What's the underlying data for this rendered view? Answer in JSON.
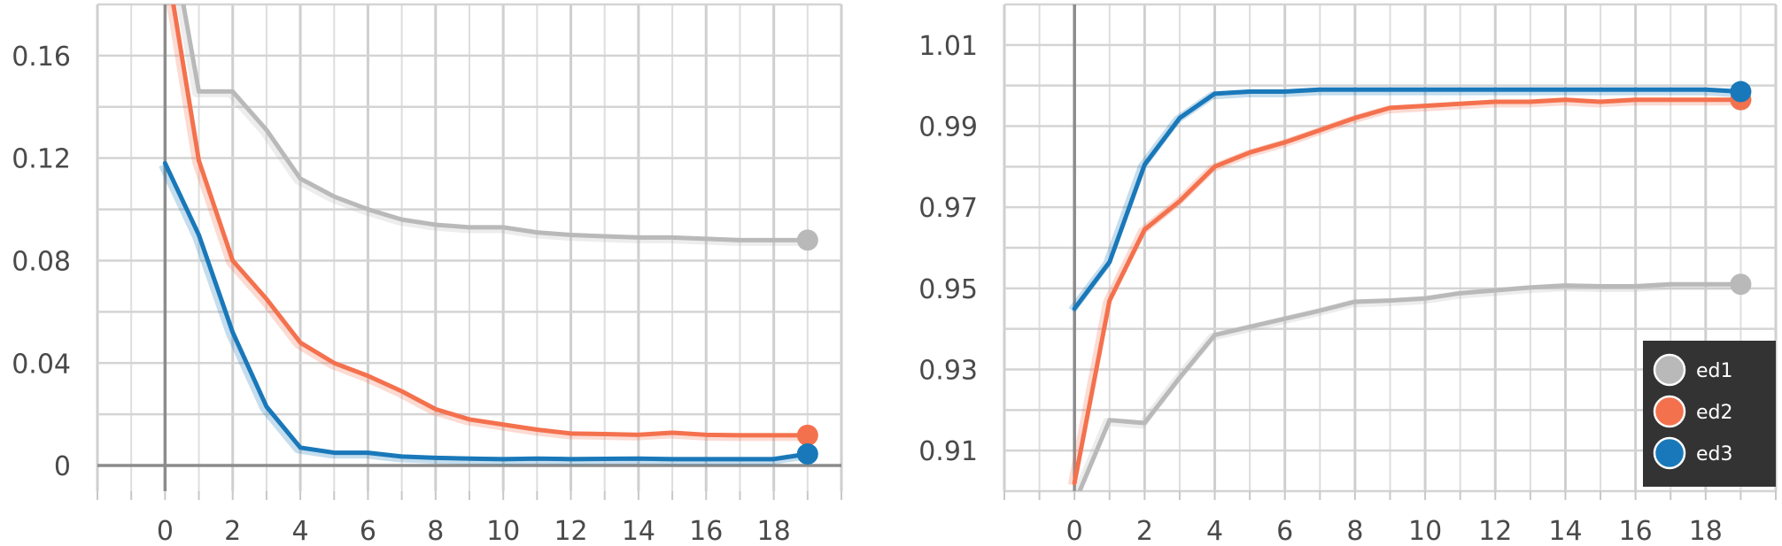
{
  "chart_data": [
    {
      "type": "line",
      "title": "",
      "xlabel": "",
      "ylabel": "",
      "xlim": [
        -2,
        20
      ],
      "ylim": [
        -0.01,
        0.18
      ],
      "x_ticks": [
        "0",
        "2",
        "4",
        "6",
        "8",
        "10",
        "12",
        "14",
        "16",
        "18"
      ],
      "y_ticks": [
        "0",
        "0.04",
        "0.08",
        "0.12",
        "0.16"
      ],
      "grid": true,
      "x": [
        0,
        1,
        2,
        3,
        4,
        5,
        6,
        7,
        8,
        9,
        10,
        11,
        12,
        13,
        14,
        15,
        16,
        17,
        18,
        19
      ],
      "series": [
        {
          "name": "ed1",
          "color": "#b9b9b9",
          "values": [
            0.22,
            0.146,
            0.146,
            0.131,
            0.112,
            0.105,
            0.1,
            0.096,
            0.094,
            0.093,
            0.093,
            0.091,
            0.09,
            0.0895,
            0.089,
            0.089,
            0.0885,
            0.088,
            0.088,
            0.088
          ]
        },
        {
          "name": "ed2",
          "color": "#f4714e",
          "values": [
            0.2,
            0.119,
            0.08,
            0.065,
            0.048,
            0.04,
            0.035,
            0.029,
            0.022,
            0.018,
            0.016,
            0.014,
            0.0125,
            0.0123,
            0.012,
            0.0128,
            0.012,
            0.0118,
            0.0118,
            0.0118
          ]
        },
        {
          "name": "ed3",
          "color": "#1978b9",
          "values": [
            0.118,
            0.09,
            0.052,
            0.023,
            0.007,
            0.005,
            0.005,
            0.0035,
            0.003,
            0.0027,
            0.0025,
            0.0027,
            0.0025,
            0.0026,
            0.0027,
            0.0025,
            0.0025,
            0.0025,
            0.0025,
            0.0045
          ]
        }
      ]
    },
    {
      "type": "line",
      "title": "",
      "xlabel": "",
      "ylabel": "",
      "xlim": [
        -2,
        20
      ],
      "ylim": [
        0.9,
        1.02
      ],
      "x_ticks": [
        "0",
        "2",
        "4",
        "6",
        "8",
        "10",
        "12",
        "14",
        "16",
        "18"
      ],
      "y_ticks": [
        "0.91",
        "0.93",
        "0.95",
        "0.97",
        "0.99",
        "1.01"
      ],
      "grid": true,
      "legend": {
        "placement": "bottom-right",
        "background": "#333333"
      },
      "x": [
        0,
        1,
        2,
        3,
        4,
        5,
        6,
        7,
        8,
        9,
        10,
        11,
        12,
        13,
        14,
        15,
        16,
        17,
        18,
        19
      ],
      "series": [
        {
          "name": "ed1",
          "color": "#b9b9b9",
          "values": [
            0.897,
            0.9175,
            0.9168,
            0.928,
            0.9385,
            0.9405,
            0.9425,
            0.9445,
            0.9467,
            0.947,
            0.9475,
            0.9488,
            0.9495,
            0.9502,
            0.9507,
            0.9505,
            0.9505,
            0.951,
            0.951,
            0.951
          ]
        },
        {
          "name": "ed2",
          "color": "#f4714e",
          "values": [
            0.902,
            0.947,
            0.9645,
            0.9715,
            0.98,
            0.9835,
            0.986,
            0.989,
            0.992,
            0.9945,
            0.995,
            0.9955,
            0.996,
            0.996,
            0.9965,
            0.996,
            0.9965,
            0.9965,
            0.9965,
            0.9965
          ]
        },
        {
          "name": "ed3",
          "color": "#1978b9",
          "values": [
            0.945,
            0.9565,
            0.9805,
            0.992,
            0.998,
            0.9985,
            0.9985,
            0.999,
            0.999,
            0.999,
            0.999,
            0.999,
            0.999,
            0.999,
            0.999,
            0.999,
            0.999,
            0.999,
            0.999,
            0.9985
          ]
        }
      ]
    }
  ]
}
